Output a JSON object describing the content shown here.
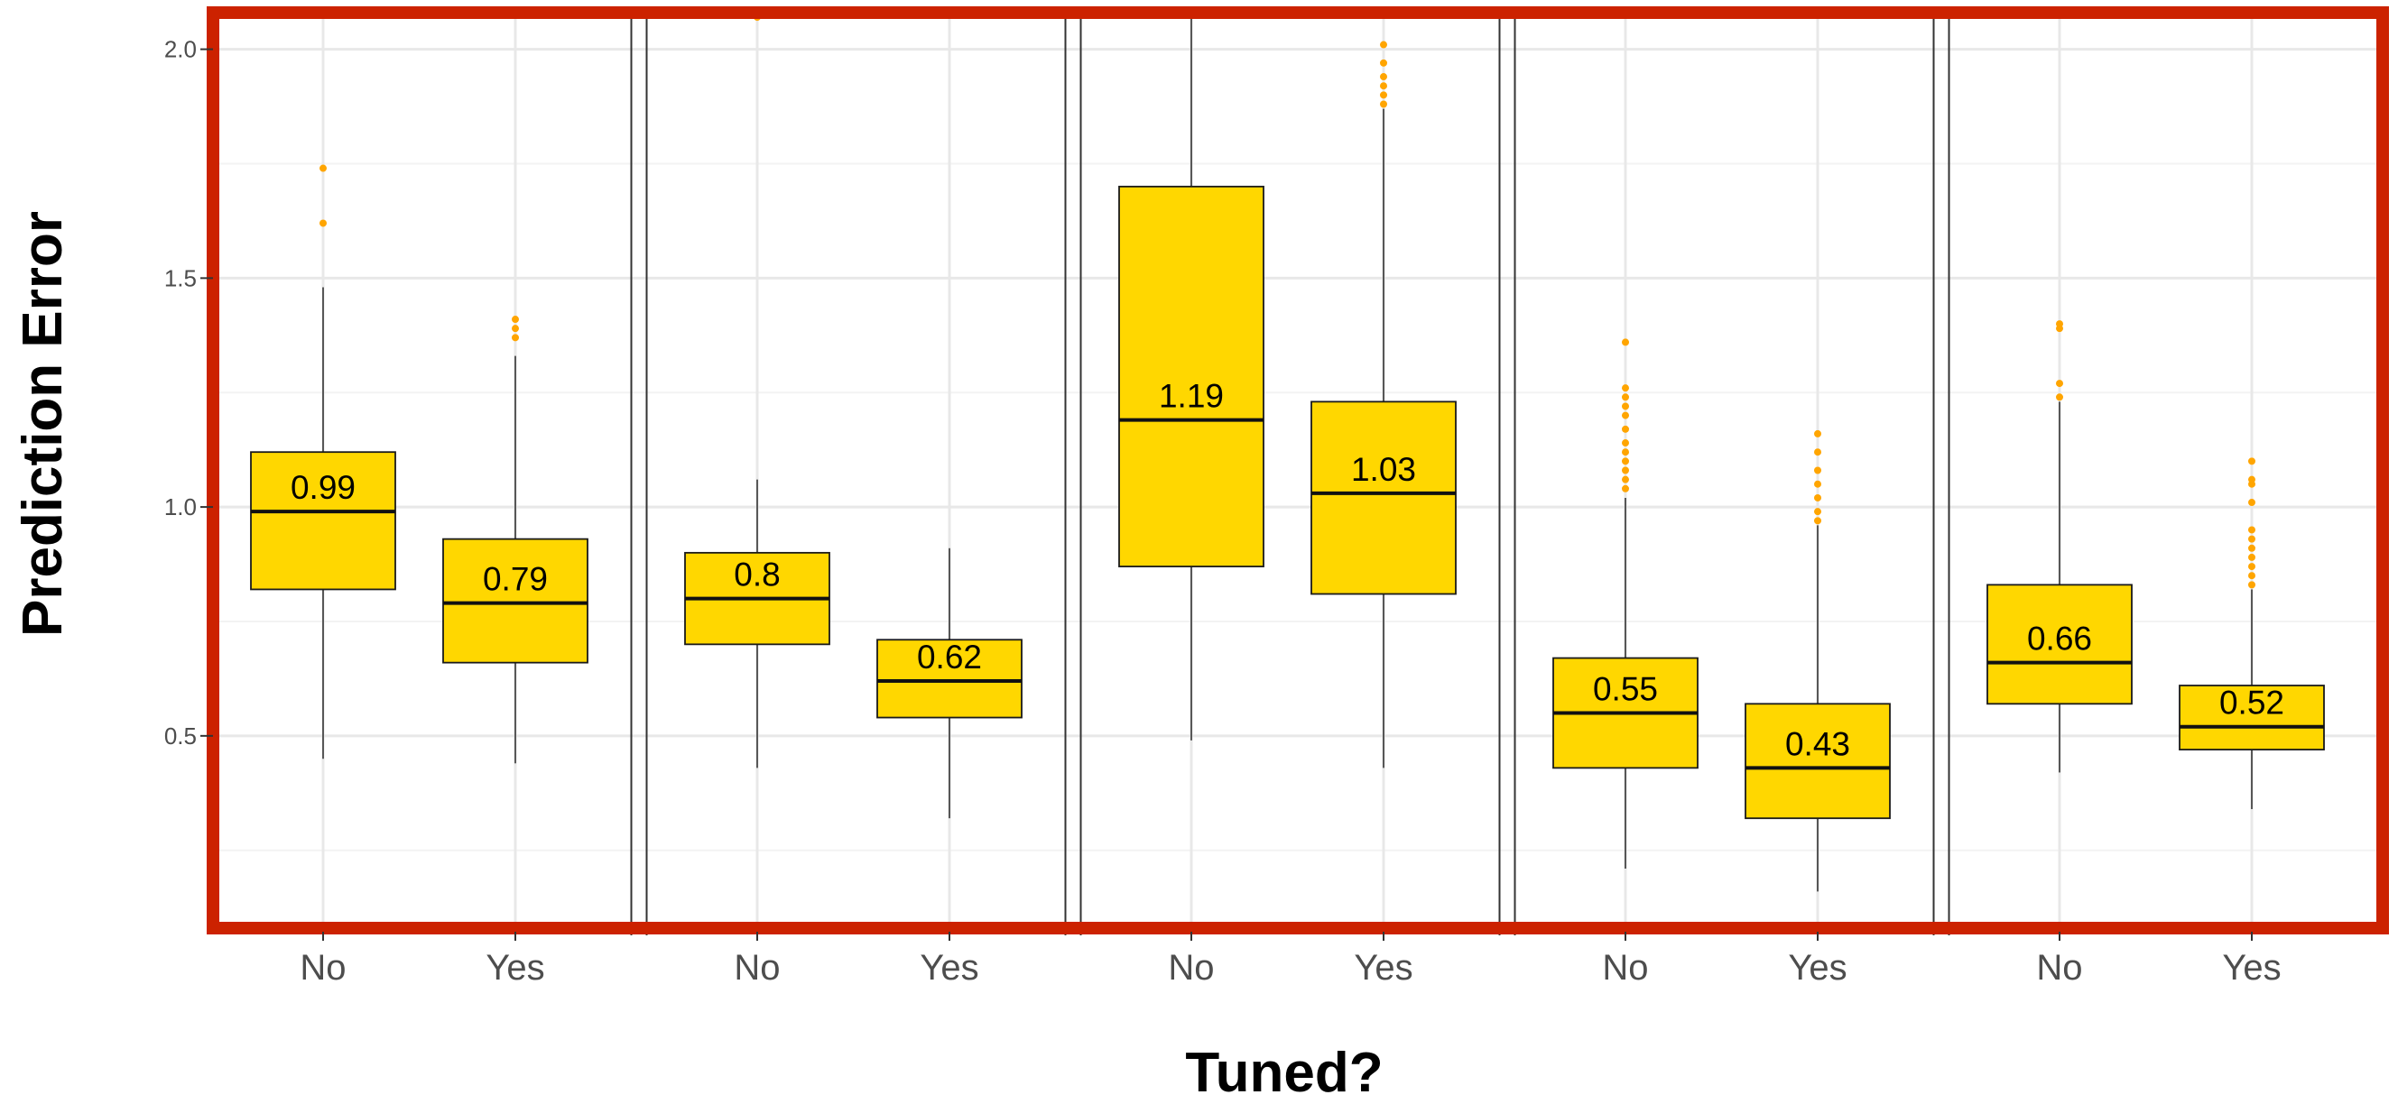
{
  "chart_data": {
    "type": "box",
    "xlabel": "Tuned?",
    "ylabel": "Prediction Error",
    "ylim": [
      0.08,
      2.08
    ],
    "y_ticks": [
      0.5,
      1.0,
      1.5,
      2.0
    ],
    "y_tick_labels": [
      "0.5",
      "1.0",
      "1.5",
      "2.0"
    ],
    "grid": true,
    "colors": {
      "box_fill": "#FFD700",
      "outlier": "#FFA500",
      "frame": "#CC2200",
      "grid_major": "#E8E8E8",
      "grid_minor": "#F3F3F3"
    },
    "panels": [
      {
        "boxes": [
          {
            "category": "No",
            "q1": 0.82,
            "median": 0.99,
            "q3": 1.12,
            "whisker_low": 0.45,
            "whisker_high": 1.48,
            "outliers": [
              1.62,
              1.74
            ],
            "label": "0.99"
          },
          {
            "category": "Yes",
            "q1": 0.66,
            "median": 0.79,
            "q3": 0.93,
            "whisker_low": 0.44,
            "whisker_high": 1.33,
            "outliers": [
              1.37,
              1.39,
              1.41
            ],
            "label": "0.79"
          }
        ]
      },
      {
        "boxes": [
          {
            "category": "No",
            "q1": 0.7,
            "median": 0.8,
            "q3": 0.9,
            "whisker_low": 0.43,
            "whisker_high": 1.06,
            "outliers": [
              2.07
            ],
            "label": "0.8"
          },
          {
            "category": "Yes",
            "q1": 0.54,
            "median": 0.62,
            "q3": 0.71,
            "whisker_low": 0.32,
            "whisker_high": 0.91,
            "outliers": [],
            "label": "0.62"
          }
        ]
      },
      {
        "boxes": [
          {
            "category": "No",
            "q1": 0.87,
            "median": 1.19,
            "q3": 1.7,
            "whisker_low": 0.49,
            "whisker_high": 2.08,
            "outliers": [],
            "label": "1.19"
          },
          {
            "category": "Yes",
            "q1": 0.81,
            "median": 1.03,
            "q3": 1.23,
            "whisker_low": 0.43,
            "whisker_high": 1.87,
            "outliers": [
              1.88,
              1.9,
              1.92,
              1.94,
              1.97,
              2.01
            ],
            "label": "1.03"
          }
        ]
      },
      {
        "boxes": [
          {
            "category": "No",
            "q1": 0.43,
            "median": 0.55,
            "q3": 0.67,
            "whisker_low": 0.21,
            "whisker_high": 1.02,
            "outliers": [
              1.04,
              1.06,
              1.08,
              1.1,
              1.12,
              1.14,
              1.17,
              1.2,
              1.22,
              1.24,
              1.26,
              1.36
            ],
            "label": "0.55"
          },
          {
            "category": "Yes",
            "q1": 0.32,
            "median": 0.43,
            "q3": 0.57,
            "whisker_low": 0.16,
            "whisker_high": 0.96,
            "outliers": [
              0.97,
              0.99,
              1.02,
              1.05,
              1.08,
              1.12,
              1.16
            ],
            "label": "0.43"
          }
        ]
      },
      {
        "boxes": [
          {
            "category": "No",
            "q1": 0.57,
            "median": 0.66,
            "q3": 0.83,
            "whisker_low": 0.42,
            "whisker_high": 1.23,
            "outliers": [
              1.24,
              1.27,
              1.39,
              1.4
            ],
            "label": "0.66"
          },
          {
            "category": "Yes",
            "q1": 0.47,
            "median": 0.52,
            "q3": 0.61,
            "whisker_low": 0.34,
            "whisker_high": 0.82,
            "outliers": [
              0.83,
              0.85,
              0.87,
              0.89,
              0.91,
              0.93,
              0.95,
              1.01,
              1.05,
              1.06,
              1.1
            ],
            "label": "0.52"
          }
        ]
      }
    ]
  }
}
